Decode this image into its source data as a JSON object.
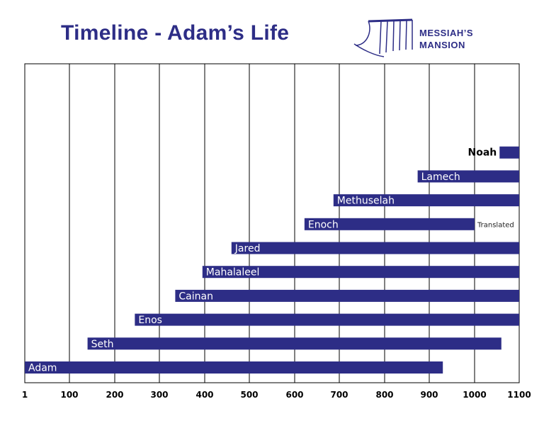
{
  "header": {
    "title": "Timeline - Adam’s Life"
  },
  "logo": {
    "line1": "MESSIAH’S",
    "line2": "MANSION",
    "icon": "harp-icon"
  },
  "colors": {
    "bar": "#2d2d86",
    "title": "#2d2d86",
    "grid": "#000000"
  },
  "chart_data": {
    "type": "bar",
    "orientation": "horizontal-timeline",
    "title": "Timeline - Adam’s Life",
    "xlim": [
      1,
      1100
    ],
    "xticks": [
      1,
      100,
      200,
      300,
      400,
      500,
      600,
      700,
      800,
      900,
      1000,
      1100
    ],
    "tick_labels": [
      "1",
      "100",
      "200",
      "300",
      "400",
      "500",
      "600",
      "700",
      "800",
      "900",
      "1000",
      "1100"
    ],
    "grid": true,
    "series": [
      {
        "name": "Adam",
        "start": 1,
        "end": 930
      },
      {
        "name": "Seth",
        "start": 140,
        "end": 1060
      },
      {
        "name": "Enos",
        "start": 245,
        "end": 1100
      },
      {
        "name": "Cainan",
        "start": 335,
        "end": 1100
      },
      {
        "name": "Mahalaleel",
        "start": 395,
        "end": 1100
      },
      {
        "name": "Jared",
        "start": 460,
        "end": 1100
      },
      {
        "name": "Enoch",
        "start": 622,
        "end": 1000,
        "note": "Translated"
      },
      {
        "name": "Methuselah",
        "start": 687,
        "end": 1100
      },
      {
        "name": "Lamech",
        "start": 874,
        "end": 1100
      },
      {
        "name": "Noah",
        "start": 1056,
        "end": 1100,
        "label_outside": true
      }
    ]
  }
}
